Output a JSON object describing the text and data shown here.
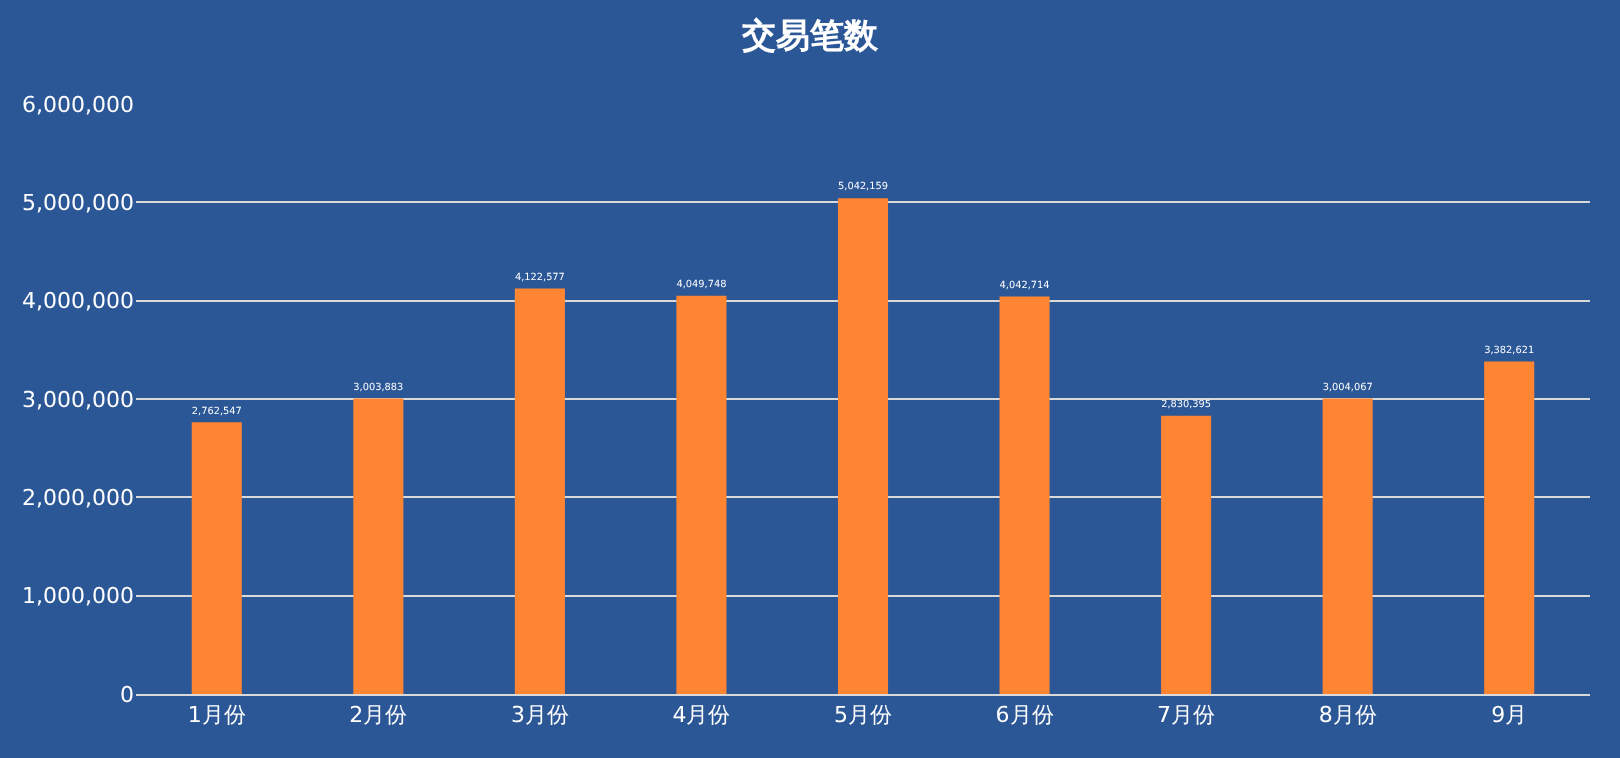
{
  "chart_data": {
    "type": "bar",
    "title": "交易笔数",
    "categories": [
      "1月份",
      "2月份",
      "3月份",
      "4月份",
      "5月份",
      "6月份",
      "7月份",
      "8月份",
      "9月"
    ],
    "values": [
      2762547,
      3003883,
      4122577,
      4049748,
      5042159,
      4042714,
      2830395,
      3004067,
      3382621
    ],
    "value_labels": [
      "2,762,547",
      "3,003,883",
      "4,122,577",
      "4,049,748",
      "5,042,159",
      "4,042,714",
      "2,830,395",
      "3,004,067",
      "3,382,621"
    ],
    "color": "#ff8533",
    "ylim": [
      0,
      6000000
    ],
    "yticks": [
      {
        "value": 0,
        "label": "0"
      },
      {
        "value": 1000000,
        "label": "1,000,000"
      },
      {
        "value": 2000000,
        "label": "2,000,000"
      },
      {
        "value": 3000000,
        "label": "3,000,000"
      },
      {
        "value": 4000000,
        "label": "4,000,000"
      },
      {
        "value": 5000000,
        "label": "5,000,000"
      },
      {
        "value": 6000000,
        "label": "6,000,000"
      }
    ],
    "grid": "y",
    "legend": false
  }
}
